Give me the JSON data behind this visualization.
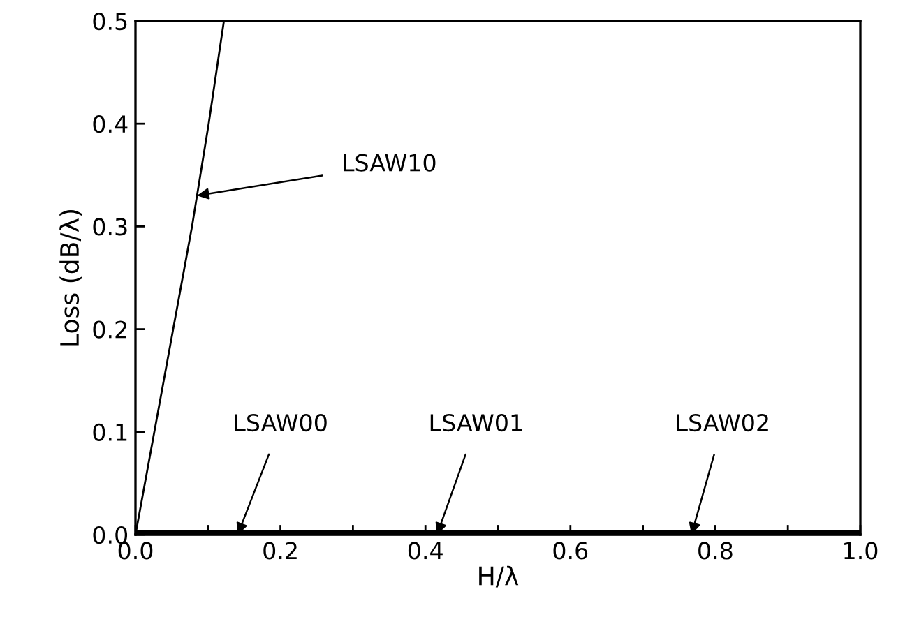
{
  "chart_data": {
    "type": "line",
    "xlabel": "H/λ",
    "ylabel": "Loss (dB/λ)",
    "series": [
      {
        "color": "#000000",
        "x": [
          0,
          0.026,
          0.052,
          0.078,
          0.101,
          0.122
        ],
        "values": [
          0,
          0.1,
          0.2,
          0.3,
          0.4,
          0.5
        ]
      },
      {
        "color": "#000000",
        "x": [
          0,
          1.0
        ],
        "values": [
          0.002,
          0.002
        ]
      }
    ],
    "annotations": [
      {
        "text": "LSAW10",
        "x": 0.085,
        "y": 0.33
      },
      {
        "text": "LSAW00",
        "x": 0.141,
        "y": 0
      },
      {
        "text": "LSAW01",
        "x": 0.416,
        "y": 0
      },
      {
        "text": "LSAW02",
        "x": 0.767,
        "y": 0
      }
    ],
    "xlim": [
      0,
      1.0
    ],
    "ylim": [
      0,
      0.5
    ],
    "xticks": [
      {
        "value": 0,
        "label": "0.0"
      },
      {
        "value": 0.1,
        "label": null
      },
      {
        "value": 0.2,
        "label": "0.2"
      },
      {
        "value": 0.3,
        "label": null
      },
      {
        "value": 0.4,
        "label": "0.4"
      },
      {
        "value": 0.5,
        "label": null
      },
      {
        "value": 0.6,
        "label": "0.6"
      },
      {
        "value": 0.7,
        "label": null
      },
      {
        "value": 0.8,
        "label": "0.8"
      },
      {
        "value": 0.9,
        "label": null
      },
      {
        "value": 1.0,
        "label": "1.0"
      }
    ],
    "yticks": [
      {
        "value": 0,
        "label": "0.0"
      },
      {
        "value": 0.1,
        "label": "0.1"
      },
      {
        "value": 0.2,
        "label": "0.2"
      },
      {
        "value": 0.3,
        "label": "0.3"
      },
      {
        "value": 0.4,
        "label": "0.4"
      },
      {
        "value": 0.5,
        "label": "0.5"
      }
    ],
    "grid": false,
    "legend": false
  }
}
